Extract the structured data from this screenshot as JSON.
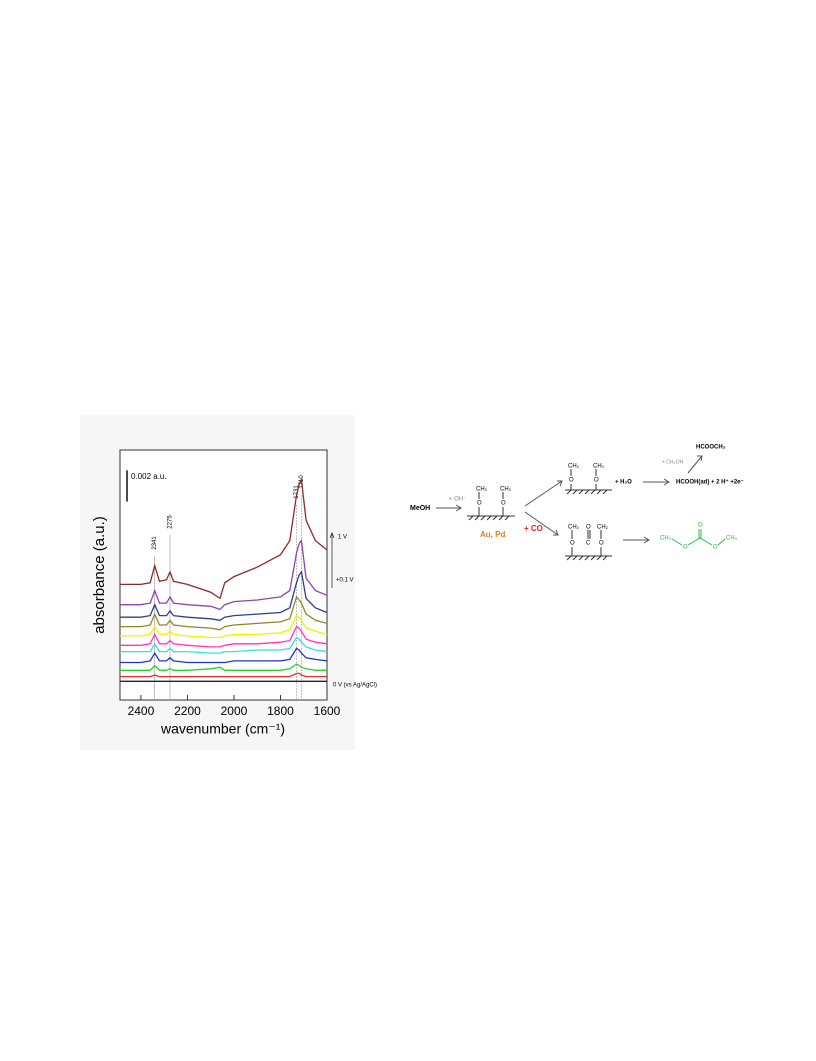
{
  "chart_data": {
    "type": "line",
    "y_label": "absorbance (a.u.)",
    "x_label": "wavenumber (cm⁻¹)",
    "x": [
      2490,
      2400,
      2360,
      2341,
      2320,
      2290,
      2275,
      2260,
      2200,
      2100,
      2060,
      2040,
      2000,
      1900,
      1800,
      1760,
      1731,
      1720,
      1710,
      1690,
      1650,
      1600
    ],
    "series": [
      {
        "color": "#8b2b2b",
        "values": [
          0.0074,
          0.0074,
          0.0075,
          0.0086,
          0.0076,
          0.0077,
          0.0082,
          0.0076,
          0.0074,
          0.0069,
          0.0065,
          0.0075,
          0.0079,
          0.0085,
          0.0093,
          0.0102,
          0.0131,
          0.0138,
          0.0141,
          0.0115,
          0.0102,
          0.0096
        ]
      },
      {
        "color": "#8e44ad",
        "values": [
          0.0061,
          0.0061,
          0.0062,
          0.007,
          0.0062,
          0.0062,
          0.0066,
          0.0062,
          0.0061,
          0.006,
          0.0058,
          0.0061,
          0.0063,
          0.0064,
          0.0066,
          0.007,
          0.0094,
          0.01,
          0.0102,
          0.0078,
          0.007,
          0.0067
        ]
      },
      {
        "color": "#2c3e8f",
        "values": [
          0.0053,
          0.0053,
          0.0054,
          0.0061,
          0.0054,
          0.0054,
          0.0057,
          0.0054,
          0.0053,
          0.0052,
          0.0051,
          0.0053,
          0.0054,
          0.0055,
          0.0056,
          0.0059,
          0.0075,
          0.008,
          0.0082,
          0.0065,
          0.0059,
          0.0056
        ]
      },
      {
        "color": "#8a8a2a",
        "values": [
          0.0047,
          0.0047,
          0.0048,
          0.0055,
          0.0048,
          0.0048,
          0.0051,
          0.0048,
          0.0047,
          0.0046,
          0.0045,
          0.0047,
          0.0048,
          0.0049,
          0.005,
          0.0052,
          0.0066,
          0.0064,
          0.0062,
          0.0055,
          0.0051,
          0.0049
        ]
      },
      {
        "color": "#f2f200",
        "values": [
          0.0041,
          0.0041,
          0.0042,
          0.0047,
          0.0042,
          0.0042,
          0.0044,
          0.0042,
          0.0041,
          0.004,
          0.004,
          0.0041,
          0.0042,
          0.0042,
          0.0043,
          0.0045,
          0.0054,
          0.0053,
          0.0051,
          0.0046,
          0.0044,
          0.0042
        ]
      },
      {
        "color": "#ff33cc",
        "values": [
          0.0035,
          0.0035,
          0.0036,
          0.0042,
          0.0036,
          0.0036,
          0.0038,
          0.0036,
          0.0035,
          0.0034,
          0.0034,
          0.0035,
          0.0036,
          0.0036,
          0.0037,
          0.0038,
          0.0047,
          0.0046,
          0.0044,
          0.0039,
          0.0037,
          0.0036
        ]
      },
      {
        "color": "#33e0e0",
        "values": [
          0.0031,
          0.0031,
          0.0031,
          0.0036,
          0.0031,
          0.0031,
          0.0033,
          0.0031,
          0.0031,
          0.003,
          0.003,
          0.0031,
          0.0031,
          0.0032,
          0.0032,
          0.0033,
          0.004,
          0.0039,
          0.0037,
          0.0034,
          0.0032,
          0.0031
        ]
      },
      {
        "color": "#2233cc",
        "values": [
          0.0024,
          0.0024,
          0.0025,
          0.003,
          0.0025,
          0.0025,
          0.0027,
          0.0025,
          0.0024,
          0.0024,
          0.0024,
          0.0024,
          0.0025,
          0.0025,
          0.0025,
          0.0026,
          0.0033,
          0.0032,
          0.003,
          0.0027,
          0.0026,
          0.0025
        ]
      },
      {
        "color": "#33cc33",
        "values": [
          0.0019,
          0.0019,
          0.0019,
          0.0022,
          0.0019,
          0.0019,
          0.002,
          0.0019,
          0.0019,
          0.002,
          0.0021,
          0.0019,
          0.0019,
          0.0019,
          0.0019,
          0.002,
          0.0023,
          0.0022,
          0.0021,
          0.002,
          0.0019,
          0.0019
        ]
      },
      {
        "color": "#e03030",
        "values": [
          0.0015,
          0.0015,
          0.0015,
          0.0016,
          0.0015,
          0.0015,
          0.0015,
          0.0015,
          0.0015,
          0.0015,
          0.0015,
          0.0015,
          0.0015,
          0.0015,
          0.0015,
          0.0015,
          0.0017,
          0.0017,
          0.0016,
          0.0015,
          0.0015,
          0.0015
        ]
      },
      {
        "color": "#222222",
        "values": [
          0.0012,
          0.0012,
          0.0012,
          0.0012,
          0.0012,
          0.0012,
          0.0012,
          0.0012,
          0.0012,
          0.0012,
          0.0012,
          0.0012,
          0.0012,
          0.0012,
          0.0012,
          0.0012,
          0.0012,
          0.0012,
          0.0012,
          0.0012,
          0.0012,
          0.0012
        ]
      }
    ],
    "xlim": [
      2490,
      1600
    ],
    "xticks": [
      2400,
      2200,
      2000,
      1800,
      1600
    ],
    "ylim": [
      0,
      0.016
    ],
    "scale_bar": {
      "value": 0.002,
      "label": "0.002 a.u."
    },
    "peak_lines": [
      2341,
      2275,
      1731,
      1710
    ],
    "annotations": [
      "1 V",
      "+0.1 V",
      "0 V (vs Ag/AgCl)"
    ]
  },
  "scheme": {
    "reactant": "MeOH",
    "reagent_1": "+ OH⁻",
    "adsorbate": [
      "CH₃",
      "O",
      "CH₃",
      "O"
    ],
    "catalyst": "Au, Pd",
    "reagent_co": "+ CO",
    "top_adsorbate": [
      "CH₂",
      "O",
      "CH₂",
      "O"
    ],
    "water": "+ H₂O",
    "products": "HCOOH(ad) + 2 H⁺ +2e⁻",
    "methanol": "+ CH₃OH",
    "ester": "HCOOCH₃",
    "bottom_adsorbate": [
      "CH₂",
      "O",
      "CH₂",
      "O",
      "C",
      "O"
    ],
    "carbonate": [
      "CH₃",
      "O",
      "O",
      "O",
      "CH₃"
    ]
  }
}
